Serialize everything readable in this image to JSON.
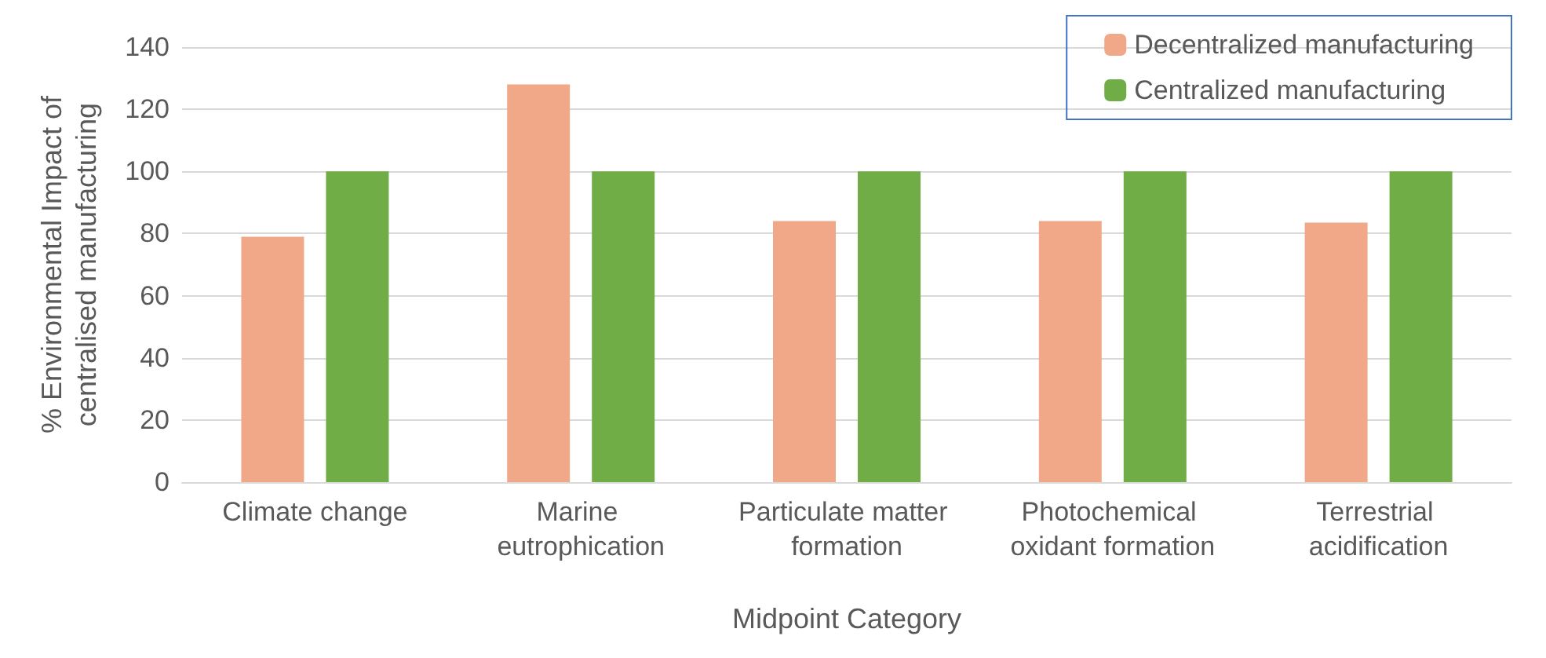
{
  "chart_data": {
    "type": "bar",
    "xlabel": "Midpoint Category",
    "ylabel": "% Environmental Impact of\ncentralised manufacturing",
    "categories": [
      "Climate change",
      "Marine eutrophication",
      "Particulate matter formation",
      "Photochemical oxidant formation",
      "Terrestrial acidification"
    ],
    "series": [
      {
        "name": "Decentralized manufacturing",
        "color": "#f1a889",
        "values": [
          79,
          128,
          84,
          84,
          83.5
        ]
      },
      {
        "name": "Centralized manufacturing",
        "color": "#70ad47",
        "values": [
          100,
          100,
          100,
          100,
          100
        ]
      }
    ],
    "ylim": [
      0,
      140
    ],
    "yticks": [
      0,
      20,
      40,
      60,
      80,
      100,
      120,
      140
    ],
    "grid": "y",
    "legend": "top right"
  }
}
